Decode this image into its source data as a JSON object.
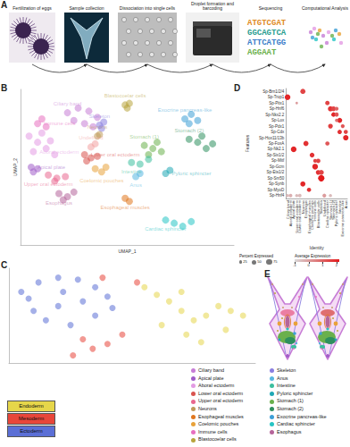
{
  "workflow": {
    "panel": "A",
    "steps": [
      "Fertilization of eggs",
      "Sample collection",
      "Dissociation into single cells",
      "Droplet formation and barcoding",
      "Sequencing",
      "Computational Analysis"
    ],
    "sequences": [
      "ATGTCGAT",
      "GGCAGTCA",
      "ATTCATGG",
      "AGGAAT"
    ]
  },
  "chart_data": [
    {
      "panel": "B",
      "type": "scatter",
      "x_label": "UMAP_1",
      "y_label": "UMAP_2",
      "xlim": [
        0,
        100
      ],
      "ylim": [
        0,
        100
      ],
      "tick_labels": false,
      "series": [
        {
          "name": "Ciliary band",
          "color": "#c77dd6",
          "values": [
            [
              22,
              85
            ],
            [
              27,
              88
            ],
            [
              32,
              86
            ],
            [
              36,
              82
            ],
            [
              25,
              80
            ],
            [
              30,
              78
            ],
            [
              34,
              76
            ]
          ]
        },
        {
          "name": "Blastocoelar cells",
          "color": "#b8a43c",
          "values": [
            [
              49,
              90
            ],
            [
              51,
              91
            ],
            [
              50,
              88
            ]
          ]
        },
        {
          "name": "Immune cells",
          "color": "#e76fc0",
          "values": [
            [
              8,
              78
            ],
            [
              10,
              81
            ],
            [
              12,
              76
            ]
          ]
        },
        {
          "name": "Skeleton",
          "color": "#8a7fe0",
          "values": [
            [
              37,
              77
            ],
            [
              39,
              79
            ],
            [
              38,
              75
            ]
          ]
        },
        {
          "name": "Neurons",
          "color": "#c09a5a",
          "values": [
            [
              36,
              70
            ],
            [
              37,
              71
            ]
          ]
        },
        {
          "name": "Aboral ectoderm",
          "color": "#e39be3",
          "values": [
            [
              6,
              60
            ],
            [
              8,
              66
            ],
            [
              12,
              62
            ],
            [
              4,
              70
            ],
            [
              14,
              67
            ],
            [
              10,
              72
            ],
            [
              16,
              58
            ]
          ]
        },
        {
          "name": "Undefined",
          "color": "#f2a0a0",
          "values": [
            [
              33,
              63
            ],
            [
              35,
              65
            ]
          ]
        },
        {
          "name": "Lower oral ectoderm",
          "color": "#d9534f",
          "values": [
            [
              30,
              58
            ],
            [
              33,
              56
            ],
            [
              36,
              57
            ],
            [
              31,
              54
            ]
          ]
        },
        {
          "name": "Apical plate",
          "color": "#a05cc8",
          "values": [
            [
              5,
              50
            ],
            [
              8,
              49
            ],
            [
              6,
              47
            ]
          ]
        },
        {
          "name": "Upper oral ectoderm",
          "color": "#e9678f",
          "values": [
            [
              13,
              45
            ],
            [
              17,
              43
            ],
            [
              21,
              44
            ],
            [
              16,
              41
            ]
          ]
        },
        {
          "name": "Coelomic pouches",
          "color": "#e8a23a",
          "values": [
            [
              38,
              47
            ],
            [
              35,
              49
            ],
            [
              40,
              50
            ]
          ]
        },
        {
          "name": "Esophagus",
          "color": "#b5649a",
          "values": [
            [
              18,
              33
            ],
            [
              22,
              31
            ],
            [
              25,
              34
            ],
            [
              20,
              29
            ]
          ]
        },
        {
          "name": "Esophageal muscles",
          "color": "#e0761e",
          "values": [
            [
              49,
              30
            ],
            [
              51,
              28
            ]
          ]
        },
        {
          "name": "Exocrine pancreas-like",
          "color": "#3d9fd6",
          "values": [
            [
              77,
              81
            ],
            [
              80,
              84
            ],
            [
              83,
              80
            ],
            [
              79,
              78
            ]
          ]
        },
        {
          "name": "Stomach (1)",
          "color": "#6ab04c",
          "values": [
            [
              58,
              64
            ],
            [
              62,
              62
            ],
            [
              66,
              60
            ],
            [
              60,
              58
            ],
            [
              64,
              66
            ]
          ]
        },
        {
          "name": "Stomach (2)",
          "color": "#2e8f5e",
          "values": [
            [
              79,
              68
            ],
            [
              83,
              66
            ],
            [
              87,
              62
            ],
            [
              90,
              65
            ],
            [
              85,
              70
            ]
          ]
        },
        {
          "name": "Intestine",
          "color": "#3cbf9e",
          "values": [
            [
              52,
              53
            ],
            [
              56,
              52
            ],
            [
              60,
              55
            ]
          ]
        },
        {
          "name": "Pyloric sphincter",
          "color": "#1fa8b5",
          "values": [
            [
              68,
              46
            ],
            [
              70,
              48
            ]
          ]
        },
        {
          "name": "Anus",
          "color": "#58b7e0",
          "values": [
            [
              54,
              44
            ],
            [
              56,
              46
            ]
          ]
        },
        {
          "name": "Cardiac sphincter",
          "color": "#26c4c4",
          "values": [
            [
              68,
              16
            ],
            [
              72,
              14
            ],
            [
              76,
              12
            ],
            [
              80,
              15
            ]
          ]
        }
      ]
    },
    {
      "panel": "C",
      "type": "scatter",
      "xlim": [
        0,
        100
      ],
      "ylim": [
        0,
        100
      ],
      "tick_labels": false,
      "legend": "bottom-left",
      "series": [
        {
          "name": "Endoderm",
          "color": "#e6d64a",
          "values": [
            [
              55,
              80
            ],
            [
              60,
              72
            ],
            [
              65,
              65
            ],
            [
              70,
              55
            ],
            [
              75,
              45
            ],
            [
              80,
              50
            ],
            [
              85,
              60
            ],
            [
              90,
              55
            ],
            [
              95,
              50
            ],
            [
              70,
              75
            ],
            [
              62,
              40
            ],
            [
              72,
              30
            ],
            [
              78,
              22
            ],
            [
              88,
              35
            ]
          ]
        },
        {
          "name": "Mesoderm",
          "color": "#e8463a",
          "values": [
            [
              38,
              90
            ],
            [
              30,
              25
            ],
            [
              34,
              15
            ],
            [
              40,
              20
            ],
            [
              46,
              30
            ],
            [
              52,
              85
            ],
            [
              26,
              8
            ]
          ]
        },
        {
          "name": "Ectoderm",
          "color": "#5b6fd6",
          "values": [
            [
              5,
              75
            ],
            [
              12,
              85
            ],
            [
              20,
              90
            ],
            [
              28,
              88
            ],
            [
              35,
              80
            ],
            [
              40,
              70
            ],
            [
              30,
              65
            ],
            [
              20,
              60
            ],
            [
              10,
              55
            ],
            [
              15,
              45
            ],
            [
              25,
              40
            ],
            [
              35,
              50
            ],
            [
              42,
              58
            ],
            [
              8,
              68
            ],
            [
              22,
              75
            ]
          ]
        }
      ]
    },
    {
      "panel": "D",
      "type": "dotplot",
      "x_label": "Identity",
      "y_label": "Features",
      "categories": [
        "Ciliary band",
        "Aboral ectoderm",
        "Apical plate",
        "Upper oral ectoderm",
        "Lower oral ectoderm",
        "Neurons",
        "Esophagus",
        "Esophageal muscles",
        "Coelomic pouches",
        "Immune cells",
        "Blastocoelar cells",
        "Skeleton",
        "Undefined",
        "Cardiac sphincter",
        "Stomach (1)",
        "Stomach (2)",
        "Pyloric sphincter",
        "Intestine",
        "Exocrine pancreas-like",
        "Anus"
      ],
      "features": [
        "Sp-Brn1/2/4",
        "Sp-Trop1",
        "Sp-Pitx1",
        "Sp-Hnf6",
        "Sp-Nkx2.2",
        "Sp-Lox",
        "Sp-Pdx1",
        "Sp-Cdx",
        "Sp-Hox11/13b",
        "Sp-FoxA",
        "Sp-Nk2.1",
        "Sp-Six1/2",
        "Sp-Mitf",
        "Sp-Gcm",
        "Sp-Ets1/2",
        "Sp-Sm50",
        "Sp-Synb",
        "Sp-MyoD",
        "Sp-Hnf4"
      ],
      "points": [
        [
          5,
          0,
          60,
          1.5
        ],
        [
          0,
          1,
          70,
          2
        ],
        [
          13,
          2,
          50,
          1.5
        ],
        [
          3,
          2,
          20,
          0
        ],
        [
          14,
          3,
          60,
          1.8
        ],
        [
          15,
          3,
          55,
          1.5
        ],
        [
          16,
          3,
          40,
          1
        ],
        [
          15,
          4,
          50,
          2
        ],
        [
          16,
          4,
          45,
          1.2
        ],
        [
          17,
          5,
          60,
          2
        ],
        [
          16,
          5,
          30,
          0.8
        ],
        [
          14,
          6,
          55,
          1.6
        ],
        [
          18,
          6,
          40,
          1.2
        ],
        [
          17,
          7,
          50,
          1.8
        ],
        [
          19,
          7,
          45,
          1.5
        ],
        [
          19,
          8,
          65,
          2
        ],
        [
          6,
          9,
          60,
          1.8
        ],
        [
          13,
          9,
          45,
          1.2
        ],
        [
          2,
          10,
          70,
          2
        ],
        [
          8,
          11,
          55,
          1.8
        ],
        [
          9,
          12,
          40,
          1.5
        ],
        [
          10,
          12,
          50,
          1.5
        ],
        [
          9,
          13,
          70,
          2
        ],
        [
          10,
          14,
          55,
          1.8
        ],
        [
          11,
          14,
          60,
          1.5
        ],
        [
          11,
          15,
          80,
          2.2
        ],
        [
          5,
          16,
          60,
          2
        ],
        [
          7,
          17,
          45,
          1.8
        ],
        [
          0,
          18,
          30,
          -0.5
        ],
        [
          1,
          18,
          35,
          -0.3
        ],
        [
          3,
          18,
          30,
          -0.5
        ],
        [
          4,
          18,
          35,
          -0.5
        ],
        [
          12,
          18,
          40,
          0
        ],
        [
          14,
          18,
          30,
          -0.5
        ]
      ],
      "size_title": "Percent Expressed",
      "size_ticks": [
        25,
        50,
        75
      ],
      "color_title": "Average Expression",
      "color_range": [
        -1,
        2.2
      ],
      "color_ticks": [
        -1,
        0,
        1,
        2
      ]
    }
  ],
  "schematic": {
    "panel": "E",
    "legend": [
      "Ciliary band",
      "Apical plate",
      "Aboral ectoderm",
      "Lower oral ectoderm",
      "Upper oral ectoderm",
      "Neurons",
      "Esophageal muscles",
      "Coelomic pouches",
      "Immune cells",
      "Blastocoelar cells",
      "Skeleton",
      "Anus",
      "Intestine",
      "Pyloric sphincter",
      "Stomach (1)",
      "Stomach (2)",
      "Exocrine pancreas-like",
      "Cardiac sphincter",
      "Esophagus"
    ]
  }
}
